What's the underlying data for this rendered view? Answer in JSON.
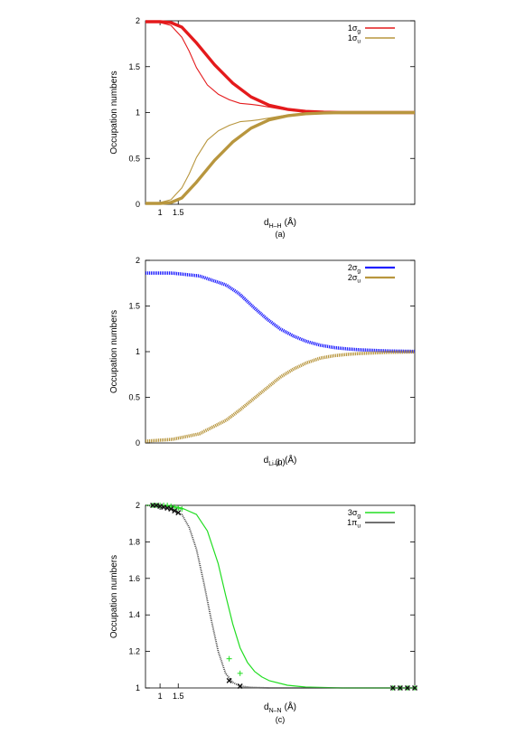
{
  "chart_data": [
    {
      "type": "line",
      "caption": "(a)",
      "xlabel": {
        "main": "d",
        "sub": "H–H",
        "unit": "(Å)"
      },
      "ylabel": "Occupation numbers",
      "xlim": [
        0.6,
        8.0
      ],
      "ylim": [
        0,
        2
      ],
      "xticks": [
        "1",
        "1.5"
      ],
      "yticks": [
        "0",
        "0.5",
        "1",
        "1.5",
        "2"
      ],
      "legend_position": "top-right",
      "series": [
        {
          "name": "1σg",
          "sym": "1σ",
          "sub": "g",
          "color": "#e41a1c",
          "style": "thick",
          "points": [
            [
              0.6,
              1.99
            ],
            [
              1.0,
              1.99
            ],
            [
              1.3,
              1.98
            ],
            [
              1.6,
              1.93
            ],
            [
              2.0,
              1.76
            ],
            [
              2.5,
              1.52
            ],
            [
              3.0,
              1.32
            ],
            [
              3.5,
              1.17
            ],
            [
              4.0,
              1.08
            ],
            [
              4.5,
              1.035
            ],
            [
              5.0,
              1.013
            ],
            [
              5.5,
              1.004
            ],
            [
              6.0,
              1.0
            ],
            [
              8.0,
              1.0
            ]
          ]
        },
        {
          "name": "1σg",
          "sym": "1σ",
          "sub": "g",
          "color": "#e41a1c",
          "style": "thin",
          "points": [
            [
              0.6,
              1.99
            ],
            [
              1.0,
              1.98
            ],
            [
              1.3,
              1.95
            ],
            [
              1.6,
              1.82
            ],
            [
              1.8,
              1.67
            ],
            [
              2.0,
              1.49
            ],
            [
              2.3,
              1.3
            ],
            [
              2.6,
              1.2
            ],
            [
              2.9,
              1.14
            ],
            [
              3.2,
              1.1
            ],
            [
              3.5,
              1.09
            ],
            [
              3.7,
              1.08
            ],
            [
              4.0,
              1.06
            ],
            [
              4.5,
              1.025
            ],
            [
              5.0,
              1.008
            ],
            [
              5.5,
              1.0
            ],
            [
              8.0,
              1.0
            ]
          ]
        },
        {
          "name": "1σu",
          "sym": "1σ",
          "sub": "u",
          "color": "#b8963e",
          "style": "thick",
          "points": [
            [
              0.6,
              0.01
            ],
            [
              1.0,
              0.01
            ],
            [
              1.3,
              0.02
            ],
            [
              1.6,
              0.07
            ],
            [
              2.0,
              0.24
            ],
            [
              2.5,
              0.48
            ],
            [
              3.0,
              0.68
            ],
            [
              3.5,
              0.83
            ],
            [
              4.0,
              0.92
            ],
            [
              4.5,
              0.965
            ],
            [
              5.0,
              0.987
            ],
            [
              5.5,
              0.996
            ],
            [
              6.0,
              1.0
            ],
            [
              8.0,
              1.0
            ]
          ]
        },
        {
          "name": "1σu",
          "sym": "1σ",
          "sub": "u",
          "color": "#b8963e",
          "style": "thin",
          "points": [
            [
              0.6,
              0.01
            ],
            [
              1.0,
              0.02
            ],
            [
              1.3,
              0.05
            ],
            [
              1.6,
              0.18
            ],
            [
              1.8,
              0.33
            ],
            [
              2.0,
              0.51
            ],
            [
              2.3,
              0.7
            ],
            [
              2.6,
              0.8
            ],
            [
              2.9,
              0.86
            ],
            [
              3.2,
              0.9
            ],
            [
              3.5,
              0.91
            ],
            [
              3.7,
              0.92
            ],
            [
              4.0,
              0.94
            ],
            [
              4.5,
              0.975
            ],
            [
              5.0,
              0.992
            ],
            [
              5.5,
              1.0
            ],
            [
              8.0,
              1.0
            ]
          ]
        }
      ]
    },
    {
      "type": "line",
      "caption": "(b)",
      "xlabel": {
        "main": "d",
        "sub": "Li–Li",
        "unit": "(Å)"
      },
      "ylabel": "Occupation numbers",
      "xlim": [
        0,
        10
      ],
      "ylim": [
        0,
        2
      ],
      "xticks": [],
      "yticks": [
        "0",
        "0.5",
        "1",
        "1.5",
        "2"
      ],
      "legend_position": "top-right",
      "series": [
        {
          "name": "2σg",
          "sym": "2σ",
          "sub": "g",
          "color": "#1f1fff",
          "style": "dotted",
          "points": [
            [
              0.0,
              1.86
            ],
            [
              1.0,
              1.86
            ],
            [
              2.0,
              1.83
            ],
            [
              3.0,
              1.73
            ],
            [
              3.5,
              1.63
            ],
            [
              4.0,
              1.49
            ],
            [
              4.5,
              1.36
            ],
            [
              5.0,
              1.25
            ],
            [
              5.5,
              1.17
            ],
            [
              6.0,
              1.11
            ],
            [
              6.5,
              1.07
            ],
            [
              7.0,
              1.045
            ],
            [
              7.5,
              1.03
            ],
            [
              8.0,
              1.02
            ],
            [
              9.0,
              1.008
            ],
            [
              10.0,
              1.003
            ]
          ]
        },
        {
          "name": "2σu",
          "sym": "2σ",
          "sub": "u",
          "color": "#b8963e",
          "style": "dotted",
          "points": [
            [
              0.0,
              0.02
            ],
            [
              1.0,
              0.04
            ],
            [
              2.0,
              0.1
            ],
            [
              3.0,
              0.25
            ],
            [
              3.5,
              0.36
            ],
            [
              4.0,
              0.48
            ],
            [
              4.5,
              0.6
            ],
            [
              5.0,
              0.72
            ],
            [
              5.5,
              0.81
            ],
            [
              6.0,
              0.88
            ],
            [
              6.5,
              0.93
            ],
            [
              7.0,
              0.955
            ],
            [
              7.5,
              0.97
            ],
            [
              8.0,
              0.98
            ],
            [
              9.0,
              0.992
            ],
            [
              10.0,
              0.997
            ]
          ]
        }
      ]
    },
    {
      "type": "line",
      "caption": "(c)",
      "xlabel": {
        "main": "d",
        "sub": "N–N",
        "unit": "(Å)"
      },
      "ylabel": "Occupation numbers",
      "xlim": [
        0.6,
        8.0
      ],
      "ylim": [
        1,
        2
      ],
      "xticks": [
        "1",
        "1.5"
      ],
      "yticks": [
        "1",
        "1.2",
        "1.4",
        "1.6",
        "1.8",
        "2"
      ],
      "legend_position": "top-right",
      "series": [
        {
          "name": "3σg",
          "sym": "3σ",
          "sub": "g",
          "color": "#22dd22",
          "style": "line",
          "points": [
            [
              0.6,
              2.0
            ],
            [
              1.0,
              2.0
            ],
            [
              1.3,
              1.995
            ],
            [
              1.6,
              1.985
            ],
            [
              2.0,
              1.95
            ],
            [
              2.3,
              1.86
            ],
            [
              2.6,
              1.68
            ],
            [
              2.8,
              1.51
            ],
            [
              3.0,
              1.35
            ],
            [
              3.2,
              1.22
            ],
            [
              3.4,
              1.14
            ],
            [
              3.6,
              1.09
            ],
            [
              3.8,
              1.06
            ],
            [
              4.0,
              1.04
            ],
            [
              4.5,
              1.015
            ],
            [
              5.0,
              1.005
            ],
            [
              6.0,
              1.0
            ],
            [
              8.0,
              1.0
            ]
          ],
          "markers": [
            [
              0.8,
              2.0
            ],
            [
              0.9,
              2.0
            ],
            [
              1.0,
              2.0
            ],
            [
              1.1,
              2.0
            ],
            [
              1.2,
              2.0
            ],
            [
              1.3,
              1.995
            ],
            [
              1.4,
              1.99
            ],
            [
              1.5,
              1.985
            ],
            [
              1.6,
              1.98
            ],
            [
              2.9,
              1.16
            ],
            [
              3.2,
              1.08
            ],
            [
              7.4,
              1.0
            ],
            [
              7.6,
              1.0
            ],
            [
              7.8,
              1.0
            ],
            [
              8.0,
              1.0
            ]
          ]
        },
        {
          "name": "1πu",
          "sym": "1π",
          "sub": "u",
          "color": "#444444",
          "style": "dotted",
          "points": [
            [
              0.6,
              2.0
            ],
            [
              1.0,
              1.995
            ],
            [
              1.3,
              1.98
            ],
            [
              1.6,
              1.95
            ],
            [
              1.8,
              1.88
            ],
            [
              2.0,
              1.76
            ],
            [
              2.2,
              1.58
            ],
            [
              2.4,
              1.38
            ],
            [
              2.6,
              1.2
            ],
            [
              2.8,
              1.08
            ],
            [
              3.0,
              1.03
            ],
            [
              3.2,
              1.01
            ],
            [
              3.5,
              1.003
            ],
            [
              4.0,
              1.0
            ],
            [
              8.0,
              1.0
            ]
          ],
          "markers": [
            [
              0.8,
              2.0
            ],
            [
              0.9,
              2.0
            ],
            [
              1.0,
              1.995
            ],
            [
              1.1,
              1.99
            ],
            [
              1.2,
              1.985
            ],
            [
              1.3,
              1.98
            ],
            [
              1.4,
              1.97
            ],
            [
              1.5,
              1.96
            ],
            [
              2.9,
              1.04
            ],
            [
              3.2,
              1.01
            ],
            [
              7.4,
              1.0
            ],
            [
              7.6,
              1.0
            ],
            [
              7.8,
              1.0
            ],
            [
              8.0,
              1.0
            ]
          ]
        }
      ]
    }
  ]
}
